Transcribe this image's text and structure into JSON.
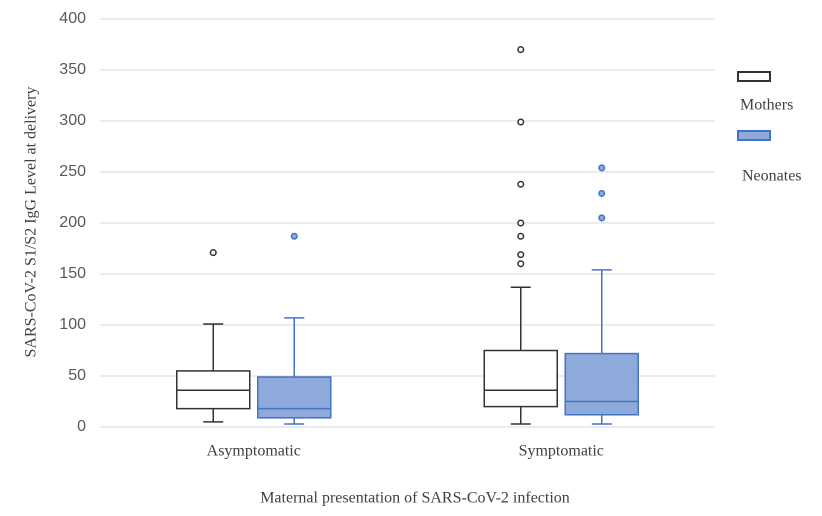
{
  "chart_data": {
    "type": "box",
    "y_label": "SARS-CoV-2 S1/S2 IgG Level at delivery",
    "x_label": "Maternal presentation of SARS-CoV-2 infection",
    "categories": [
      "Asymptomatic",
      "Symptomatic"
    ],
    "series": [
      {
        "name": "Mothers",
        "color": "#ffffff",
        "edge": "#333333",
        "boxes": [
          {
            "low": 5,
            "q1": 18,
            "median": 36,
            "q3": 55,
            "high": 101,
            "outliers": [
              171
            ]
          },
          {
            "low": 3,
            "q1": 20,
            "median": 36,
            "q3": 75,
            "high": 137,
            "outliers": [
              370,
              299,
              238,
              200,
              187,
              169,
              160
            ]
          }
        ]
      },
      {
        "name": "Neonates",
        "color": "#8eaadb",
        "edge": "#4472c4",
        "boxes": [
          {
            "low": 3,
            "q1": 9,
            "median": 18,
            "q3": 49,
            "high": 107,
            "outliers": [
              187
            ]
          },
          {
            "low": 3,
            "q1": 12,
            "median": 25,
            "q3": 72,
            "high": 154,
            "outliers": [
              254,
              229,
              205
            ]
          }
        ]
      }
    ],
    "ylim": [
      0,
      400
    ],
    "yticks": [
      0,
      50,
      100,
      150,
      200,
      250,
      300,
      350,
      400
    ],
    "grid": true,
    "legend": "right"
  }
}
